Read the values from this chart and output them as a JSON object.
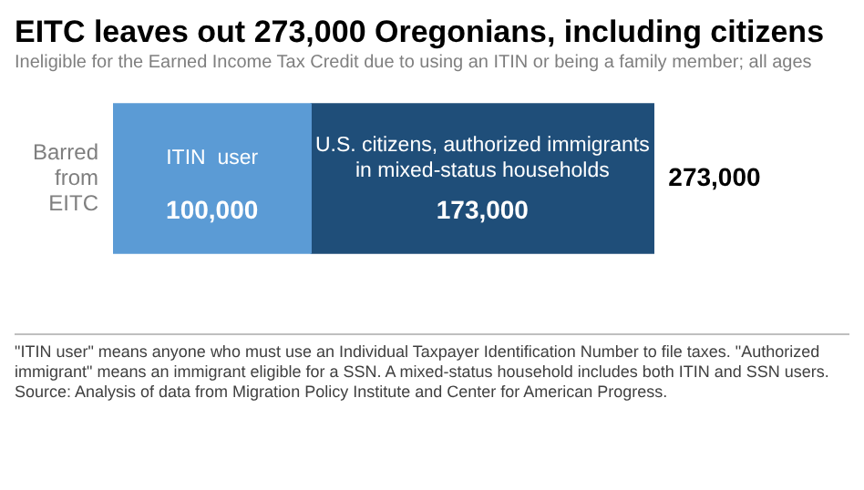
{
  "chart_data": {
    "type": "bar",
    "orientation": "horizontal",
    "stacked": true,
    "title": "EITC leaves out 273,000 Oregonians, including citizens",
    "subtitle": "Ineligible for the Earned Income Tax Credit due to using an ITIN or being a family member; all ages",
    "categories": [
      "Barred from EITC"
    ],
    "series": [
      {
        "name": "ITIN  user",
        "color": "#5b9bd5",
        "values": [
          100000
        ],
        "value_labels": [
          "100,000"
        ]
      },
      {
        "name": "U.S. citizens, authorized immigrants in mixed-status households",
        "color": "#1f4e79",
        "values": [
          173000
        ],
        "value_labels": [
          "173,000"
        ]
      }
    ],
    "totals": [
      "273,000"
    ],
    "legend": false,
    "tick_labels": "y",
    "annotations": [
      "\"ITIN  user\" means anyone who must use an Individual Taxpayer Identification Number to file taxes. \"Authorized immigrant\" means an immigrant  eligible  for a SSN.  A mixed-status household includes both ITIN  and SSN users.",
      "Source: Analysis of data from Migration Policy Institute and Center for American Progress."
    ]
  }
}
